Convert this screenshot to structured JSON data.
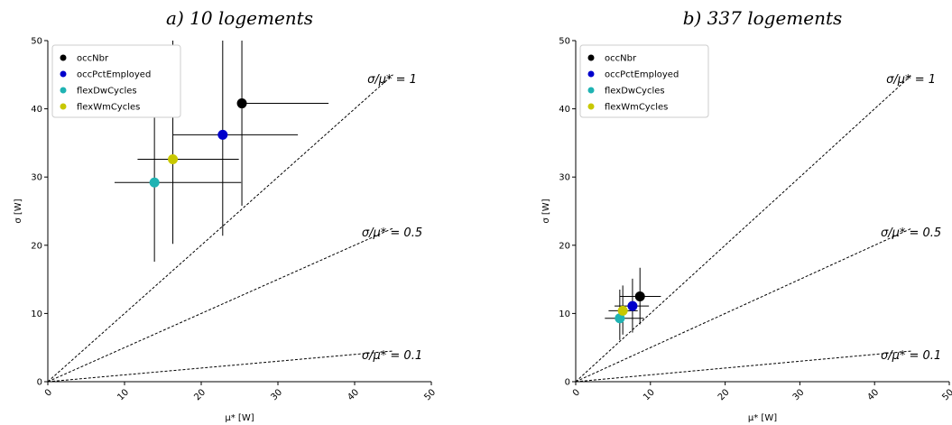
{
  "chart_data": [
    {
      "type": "scatter",
      "title": "a) 10 logements",
      "xlabel": "μ* [W]",
      "ylabel": "σ [W]",
      "xlim": [
        0,
        50
      ],
      "ylim": [
        0,
        50
      ],
      "xticks": [
        "0",
        "10",
        "20",
        "30",
        "40",
        "50"
      ],
      "yticks": [
        "0",
        "10",
        "20",
        "30",
        "40",
        "50"
      ],
      "grid": false,
      "legend_position": "top-left",
      "reference_lines": [
        {
          "ratio": 1,
          "label": "σ/μ* = 1"
        },
        {
          "ratio": 0.5,
          "label": "σ/μ* = 0.5"
        },
        {
          "ratio": 0.1,
          "label": "σ/μ* = 0.1"
        }
      ],
      "series": [
        {
          "name": "occNbr",
          "color": "#000000",
          "x": 25.3,
          "y": 40.8,
          "xerr": [
            25.3,
            36.6
          ],
          "yerr": [
            25.8,
            50
          ]
        },
        {
          "name": "occPctEmployed",
          "color": "#0000cc",
          "x": 22.8,
          "y": 36.2,
          "xerr": [
            16.3,
            32.6
          ],
          "yerr": [
            21.4,
            50
          ]
        },
        {
          "name": "flexDwCycles",
          "color": "#1fb3b3",
          "x": 13.9,
          "y": 29.2,
          "xerr": [
            8.7,
            25.2
          ],
          "yerr": [
            17.6,
            49.4
          ]
        },
        {
          "name": "flexWmCycles",
          "color": "#c8c800",
          "x": 16.3,
          "y": 32.6,
          "xerr": [
            11.7,
            24.9
          ],
          "yerr": [
            20.2,
            50
          ]
        }
      ]
    },
    {
      "type": "scatter",
      "title": "b) 337 logements",
      "xlabel": "μ* [W]",
      "ylabel": "σ [W]",
      "xlim": [
        0,
        50
      ],
      "ylim": [
        0,
        50
      ],
      "xticks": [
        "0",
        "10",
        "20",
        "30",
        "40",
        "50"
      ],
      "yticks": [
        "0",
        "10",
        "20",
        "30",
        "40",
        "50"
      ],
      "grid": false,
      "legend_position": "top-left",
      "reference_lines": [
        {
          "ratio": 1,
          "label": "σ/μ* = 1"
        },
        {
          "ratio": 0.5,
          "label": "σ/μ* = 0.5"
        },
        {
          "ratio": 0.1,
          "label": "σ/μ* = 0.1"
        }
      ],
      "series": [
        {
          "name": "occNbr",
          "color": "#000000",
          "x": 8.6,
          "y": 12.5,
          "xerr": [
            5.9,
            11.4
          ],
          "yerr": [
            8.4,
            16.7
          ]
        },
        {
          "name": "occPctEmployed",
          "color": "#0000cc",
          "x": 7.6,
          "y": 11.1,
          "xerr": [
            5.2,
            9.8
          ],
          "yerr": [
            7.2,
            15.1
          ]
        },
        {
          "name": "flexDwCycles",
          "color": "#1fb3b3",
          "x": 5.9,
          "y": 9.3,
          "xerr": [
            3.9,
            9.1
          ],
          "yerr": [
            6.1,
            13.5
          ]
        },
        {
          "name": "flexWmCycles",
          "color": "#c8c800",
          "x": 6.3,
          "y": 10.4,
          "xerr": [
            4.4,
            8.3
          ],
          "yerr": [
            6.9,
            14.1
          ]
        }
      ]
    }
  ]
}
